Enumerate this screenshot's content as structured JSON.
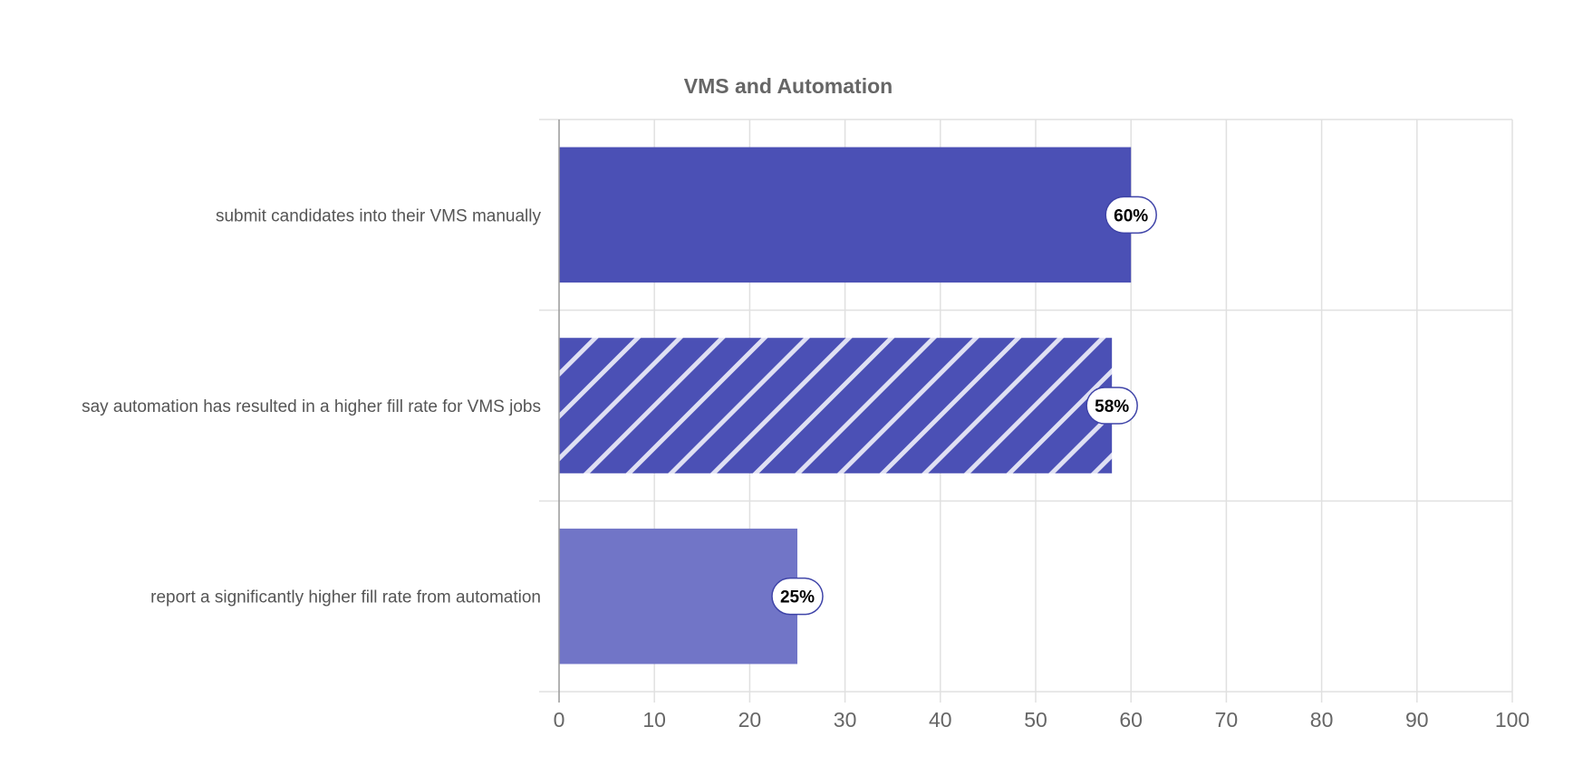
{
  "chart_data": {
    "type": "bar",
    "orientation": "horizontal",
    "title": "VMS and Automation",
    "xlabel": "",
    "ylabel": "",
    "categories": [
      "submit candidates into their VMS manually",
      "say automation has resulted in a higher fill rate for VMS jobs",
      "report a significantly higher fill rate from automation"
    ],
    "values": [
      60,
      58,
      25
    ],
    "data_labels": [
      "60%",
      "58%",
      "25%"
    ],
    "bar_styles": [
      "solid",
      "striped",
      "light"
    ],
    "xlim": [
      0,
      100
    ],
    "xticks": [
      0,
      10,
      20,
      30,
      40,
      50,
      60,
      70,
      80,
      90,
      100
    ],
    "grid": true,
    "legend": "none",
    "colors": {
      "bar": "#4b50b5",
      "bar_light": "#7175c7",
      "stripe": "#dfe0f3",
      "label_border": "#3f44a8",
      "grid": "#e0e0e0",
      "axis": "#999999"
    }
  }
}
